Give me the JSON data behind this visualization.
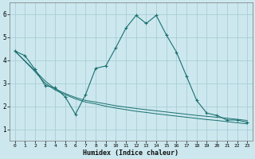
{
  "xlabel": "Humidex (Indice chaleur)",
  "bg_color": "#cce8ee",
  "grid_color": "#aacdd6",
  "line_color": "#1a7070",
  "xlim": [
    -0.5,
    23.5
  ],
  "ylim": [
    0.5,
    6.5
  ],
  "xticks": [
    0,
    1,
    2,
    3,
    4,
    5,
    6,
    7,
    8,
    9,
    10,
    11,
    12,
    13,
    14,
    15,
    16,
    17,
    18,
    19,
    20,
    21,
    22,
    23
  ],
  "yticks": [
    1,
    2,
    3,
    4,
    5,
    6
  ],
  "series1_x": [
    0,
    1,
    2,
    3,
    4,
    5,
    6,
    7,
    8,
    9,
    10,
    11,
    12,
    13,
    14,
    15,
    16,
    17,
    18,
    19,
    20,
    21,
    22,
    23
  ],
  "series1_y": [
    4.4,
    4.2,
    3.6,
    2.9,
    2.8,
    2.4,
    1.65,
    2.5,
    3.65,
    3.75,
    4.55,
    5.4,
    5.95,
    5.6,
    5.95,
    5.1,
    4.35,
    3.3,
    2.25,
    1.7,
    1.6,
    1.4,
    1.4,
    1.3
  ],
  "series2_x": [
    0,
    2,
    3,
    4,
    5,
    6,
    7,
    8,
    9,
    10,
    11,
    12,
    13,
    14,
    15,
    16,
    17,
    18,
    19,
    20,
    21,
    22,
    23
  ],
  "series2_y": [
    4.4,
    3.55,
    3.1,
    2.75,
    2.55,
    2.38,
    2.25,
    2.18,
    2.1,
    2.02,
    1.96,
    1.9,
    1.85,
    1.8,
    1.75,
    1.7,
    1.65,
    1.6,
    1.56,
    1.52,
    1.48,
    1.43,
    1.38
  ],
  "series3_x": [
    0,
    2,
    3,
    4,
    5,
    6,
    7,
    8,
    9,
    10,
    11,
    12,
    13,
    14,
    15,
    16,
    17,
    18,
    19,
    20,
    21,
    22,
    23
  ],
  "series3_y": [
    4.4,
    3.5,
    3.0,
    2.7,
    2.5,
    2.32,
    2.18,
    2.1,
    2.0,
    1.92,
    1.85,
    1.78,
    1.73,
    1.67,
    1.62,
    1.57,
    1.52,
    1.47,
    1.42,
    1.38,
    1.33,
    1.28,
    1.23
  ]
}
